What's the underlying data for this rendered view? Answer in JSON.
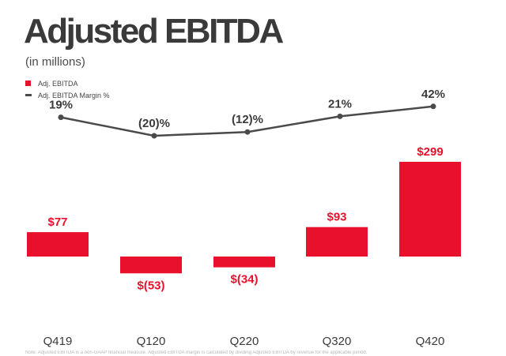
{
  "title": "Adjusted EBITDA",
  "subtitle": "(in millions)",
  "legend": {
    "bar_label": "Adj. EBITDA",
    "line_label": "Adj. EBITDA Margin %"
  },
  "colors": {
    "bar": "#e8102a",
    "line": "#4a4a4a",
    "bar_label": "#e8102a",
    "line_label": "#3a3a3a"
  },
  "chart_data": {
    "type": "bar",
    "categories": [
      "Q419",
      "Q120",
      "Q220",
      "Q320",
      "Q420"
    ],
    "series": [
      {
        "name": "Adj. EBITDA",
        "type": "bar",
        "values": [
          77,
          -53,
          -34,
          93,
          299
        ],
        "labels": [
          "$77",
          "$(53)",
          "$(34)",
          "$93",
          "$299"
        ]
      },
      {
        "name": "Adj. EBITDA Margin %",
        "type": "line",
        "values": [
          19,
          -20,
          -12,
          21,
          42
        ],
        "labels": [
          "19%",
          "(20)%",
          "(12)%",
          "21%",
          "42%"
        ]
      }
    ],
    "title": "Adjusted EBITDA",
    "subtitle": "(in millions)",
    "grid": false,
    "legend_position": "top-left"
  },
  "footnote": "Note: Adjusted EBITDA is a non-GAAP financial measure. Adjusted EBITDA margin is calculated by dividing Adjusted EBITDA by revenue for the applicable period."
}
